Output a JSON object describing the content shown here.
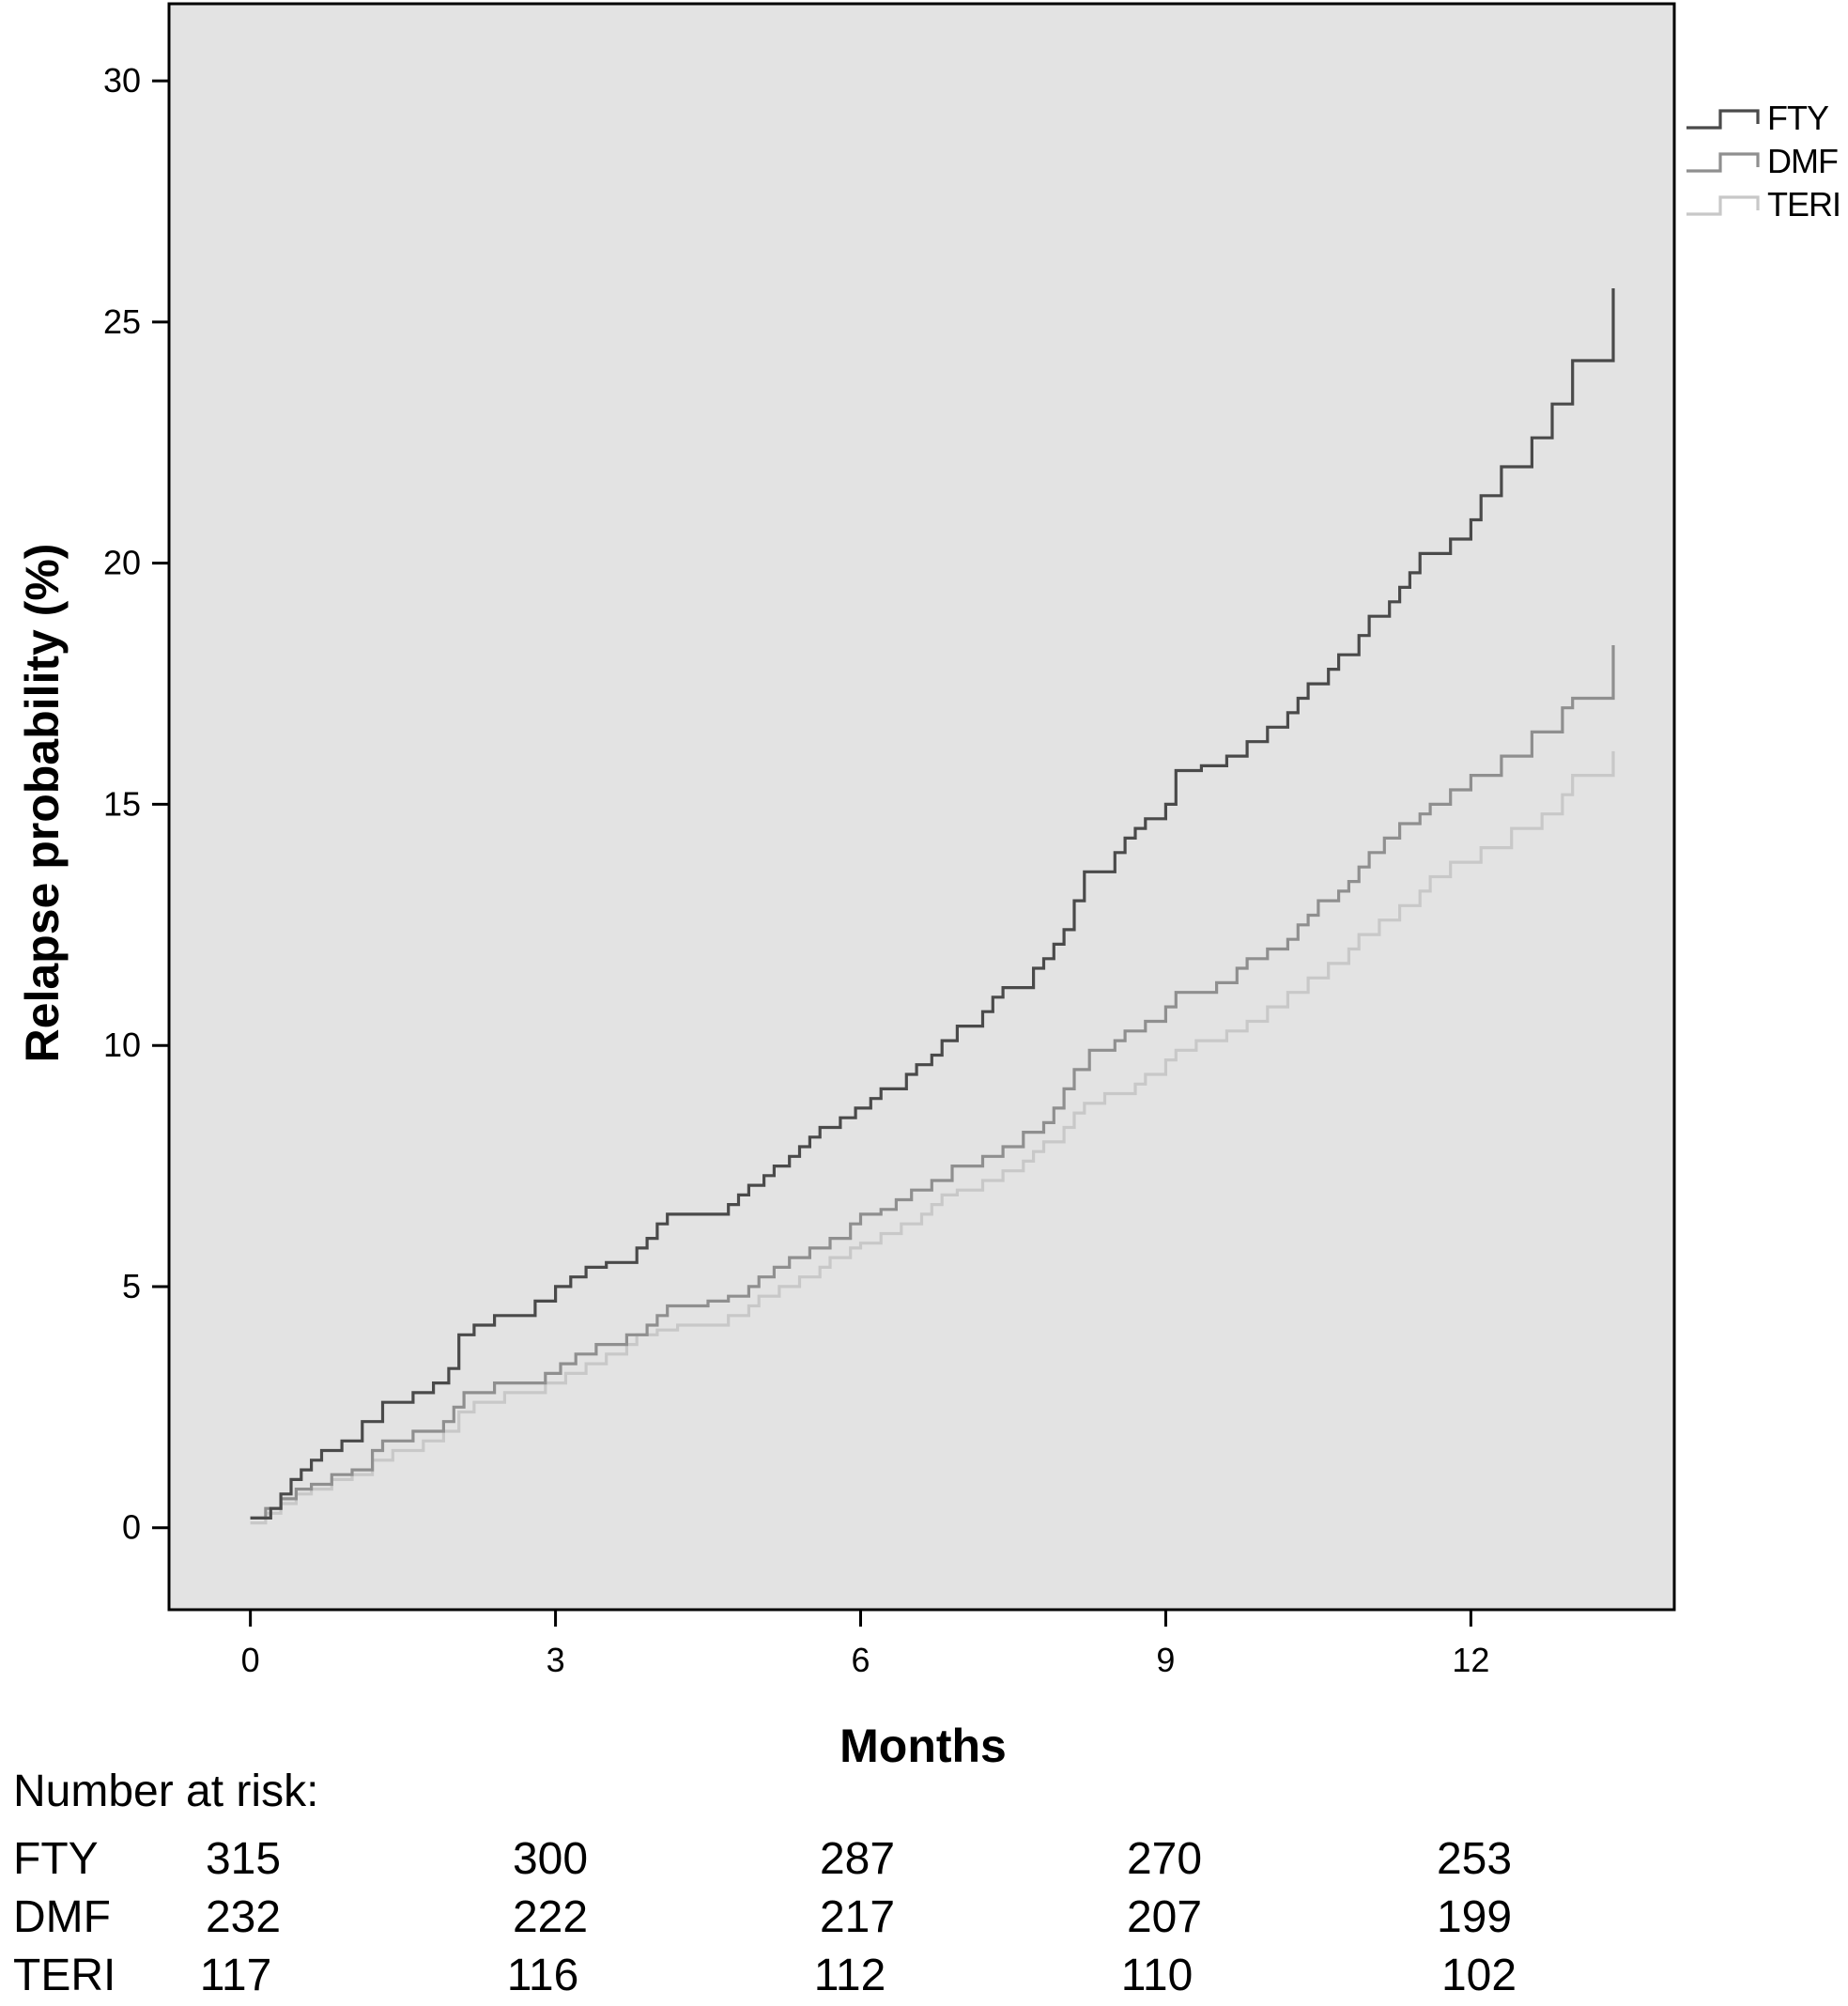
{
  "chart_data": {
    "type": "line",
    "step": true,
    "ylabel": "Relapse probability (%)",
    "xlabel": "Months",
    "xlim": [
      -0.8,
      14.0
    ],
    "ylim": [
      -1.7,
      31.6
    ],
    "xticks": [
      0,
      3,
      6,
      9,
      12
    ],
    "yticks": [
      0,
      5,
      10,
      15,
      20,
      25,
      30
    ],
    "grid": false,
    "background": "#e3e3e3",
    "legend_position": "top-right",
    "series": [
      {
        "name": "FTY",
        "color": "#4a4a4a",
        "x": [
          0,
          0.2,
          0.3,
          0.4,
          0.5,
          0.6,
          0.7,
          0.9,
          1.1,
          1.3,
          1.6,
          1.8,
          1.95,
          2.05,
          2.2,
          2.4,
          2.8,
          3.0,
          3.15,
          3.3,
          3.5,
          3.8,
          3.9,
          4.0,
          4.1,
          4.3,
          4.7,
          4.8,
          4.9,
          5.05,
          5.15,
          5.3,
          5.4,
          5.5,
          5.6,
          5.8,
          5.95,
          6.1,
          6.2,
          6.45,
          6.55,
          6.7,
          6.8,
          6.95,
          7.2,
          7.3,
          7.4,
          7.7,
          7.8,
          7.9,
          8.0,
          8.1,
          8.2,
          8.5,
          8.6,
          8.7,
          8.8,
          9.0,
          9.1,
          9.35,
          9.6,
          9.8,
          10.0,
          10.2,
          10.3,
          10.4,
          10.6,
          10.7,
          10.9,
          11.0,
          11.2,
          11.3,
          11.4,
          11.5,
          11.8,
          12.0,
          12.1,
          12.3,
          12.6,
          12.8,
          13.0,
          13.4
        ],
        "y": [
          0.2,
          0.4,
          0.7,
          1.0,
          1.2,
          1.4,
          1.6,
          1.8,
          2.2,
          2.6,
          2.8,
          3.0,
          3.3,
          4.0,
          4.2,
          4.4,
          4.7,
          5.0,
          5.2,
          5.4,
          5.5,
          5.8,
          6.0,
          6.3,
          6.5,
          6.5,
          6.7,
          6.9,
          7.1,
          7.3,
          7.5,
          7.7,
          7.9,
          8.1,
          8.3,
          8.5,
          8.7,
          8.9,
          9.1,
          9.4,
          9.6,
          9.8,
          10.1,
          10.4,
          10.7,
          11.0,
          11.2,
          11.6,
          11.8,
          12.1,
          12.4,
          13.0,
          13.6,
          14.0,
          14.3,
          14.5,
          14.7,
          15.0,
          15.7,
          15.8,
          16.0,
          16.3,
          16.6,
          16.9,
          17.2,
          17.5,
          17.8,
          18.1,
          18.5,
          18.9,
          19.2,
          19.5,
          19.8,
          20.2,
          20.5,
          20.9,
          21.4,
          22.0,
          22.6,
          23.3,
          24.2,
          25.7
        ]
      },
      {
        "name": "DMF",
        "color": "#8f8f8f",
        "x": [
          0,
          0.15,
          0.3,
          0.45,
          0.6,
          0.8,
          1.0,
          1.2,
          1.3,
          1.6,
          1.9,
          2.0,
          2.1,
          2.4,
          2.9,
          3.05,
          3.2,
          3.4,
          3.7,
          3.9,
          4.0,
          4.1,
          4.5,
          4.7,
          4.9,
          5.0,
          5.15,
          5.3,
          5.5,
          5.7,
          5.9,
          6.0,
          6.2,
          6.35,
          6.5,
          6.7,
          6.9,
          7.2,
          7.4,
          7.6,
          7.8,
          7.9,
          8.0,
          8.1,
          8.25,
          8.5,
          8.6,
          8.8,
          9.0,
          9.1,
          9.5,
          9.7,
          9.8,
          10.0,
          10.2,
          10.3,
          10.4,
          10.5,
          10.7,
          10.8,
          10.9,
          11.0,
          11.15,
          11.3,
          11.5,
          11.6,
          11.8,
          12.0,
          12.3,
          12.6,
          12.9,
          13.0,
          13.4
        ],
        "y": [
          0.2,
          0.4,
          0.6,
          0.8,
          0.9,
          1.1,
          1.2,
          1.6,
          1.8,
          2.0,
          2.2,
          2.5,
          2.8,
          3.0,
          3.2,
          3.4,
          3.6,
          3.8,
          4.0,
          4.2,
          4.4,
          4.6,
          4.7,
          4.8,
          5.0,
          5.2,
          5.4,
          5.6,
          5.8,
          6.0,
          6.3,
          6.5,
          6.6,
          6.8,
          7.0,
          7.2,
          7.5,
          7.7,
          7.9,
          8.2,
          8.4,
          8.7,
          9.1,
          9.5,
          9.9,
          10.1,
          10.3,
          10.5,
          10.8,
          11.1,
          11.3,
          11.6,
          11.8,
          12.0,
          12.2,
          12.5,
          12.7,
          13.0,
          13.2,
          13.4,
          13.7,
          14.0,
          14.3,
          14.6,
          14.8,
          15.0,
          15.3,
          15.6,
          16.0,
          16.5,
          17.0,
          17.2,
          18.3
        ]
      },
      {
        "name": "TERI",
        "color": "#c8c8c8",
        "x": [
          0,
          0.15,
          0.3,
          0.45,
          0.6,
          0.8,
          1.0,
          1.2,
          1.4,
          1.7,
          1.9,
          2.05,
          2.2,
          2.5,
          2.9,
          3.1,
          3.3,
          3.5,
          3.7,
          3.8,
          4.0,
          4.2,
          4.7,
          4.9,
          5.0,
          5.2,
          5.4,
          5.6,
          5.7,
          5.9,
          6.0,
          6.2,
          6.4,
          6.6,
          6.7,
          6.8,
          6.95,
          7.2,
          7.4,
          7.6,
          7.7,
          7.8,
          8.0,
          8.1,
          8.2,
          8.4,
          8.7,
          8.8,
          9.0,
          9.1,
          9.3,
          9.6,
          9.8,
          10.0,
          10.2,
          10.4,
          10.6,
          10.8,
          10.9,
          11.1,
          11.3,
          11.5,
          11.6,
          11.8,
          12.1,
          12.4,
          12.7,
          12.9,
          13.0,
          13.4
        ],
        "y": [
          0.1,
          0.3,
          0.5,
          0.7,
          0.8,
          1.0,
          1.1,
          1.4,
          1.6,
          1.8,
          2.0,
          2.4,
          2.6,
          2.8,
          3.0,
          3.2,
          3.4,
          3.6,
          3.8,
          4.0,
          4.1,
          4.2,
          4.4,
          4.6,
          4.8,
          5.0,
          5.2,
          5.4,
          5.6,
          5.8,
          5.9,
          6.1,
          6.3,
          6.5,
          6.7,
          6.9,
          7.0,
          7.2,
          7.4,
          7.6,
          7.8,
          8.0,
          8.3,
          8.6,
          8.8,
          9.0,
          9.2,
          9.4,
          9.7,
          9.9,
          10.1,
          10.3,
          10.5,
          10.8,
          11.1,
          11.4,
          11.7,
          12.0,
          12.3,
          12.6,
          12.9,
          13.2,
          13.5,
          13.8,
          14.1,
          14.5,
          14.8,
          15.2,
          15.6,
          16.1
        ]
      }
    ]
  },
  "risk_table": {
    "title": "Number at risk:",
    "rows": [
      {
        "name": "FTY",
        "values": [
          "315",
          "300",
          "287",
          "270",
          "253"
        ]
      },
      {
        "name": "DMF",
        "values": [
          "232",
          "222",
          "217",
          "207",
          "199"
        ]
      },
      {
        "name": "TERI",
        "values": [
          "117",
          "116",
          "112",
          "110",
          "102"
        ]
      }
    ]
  }
}
